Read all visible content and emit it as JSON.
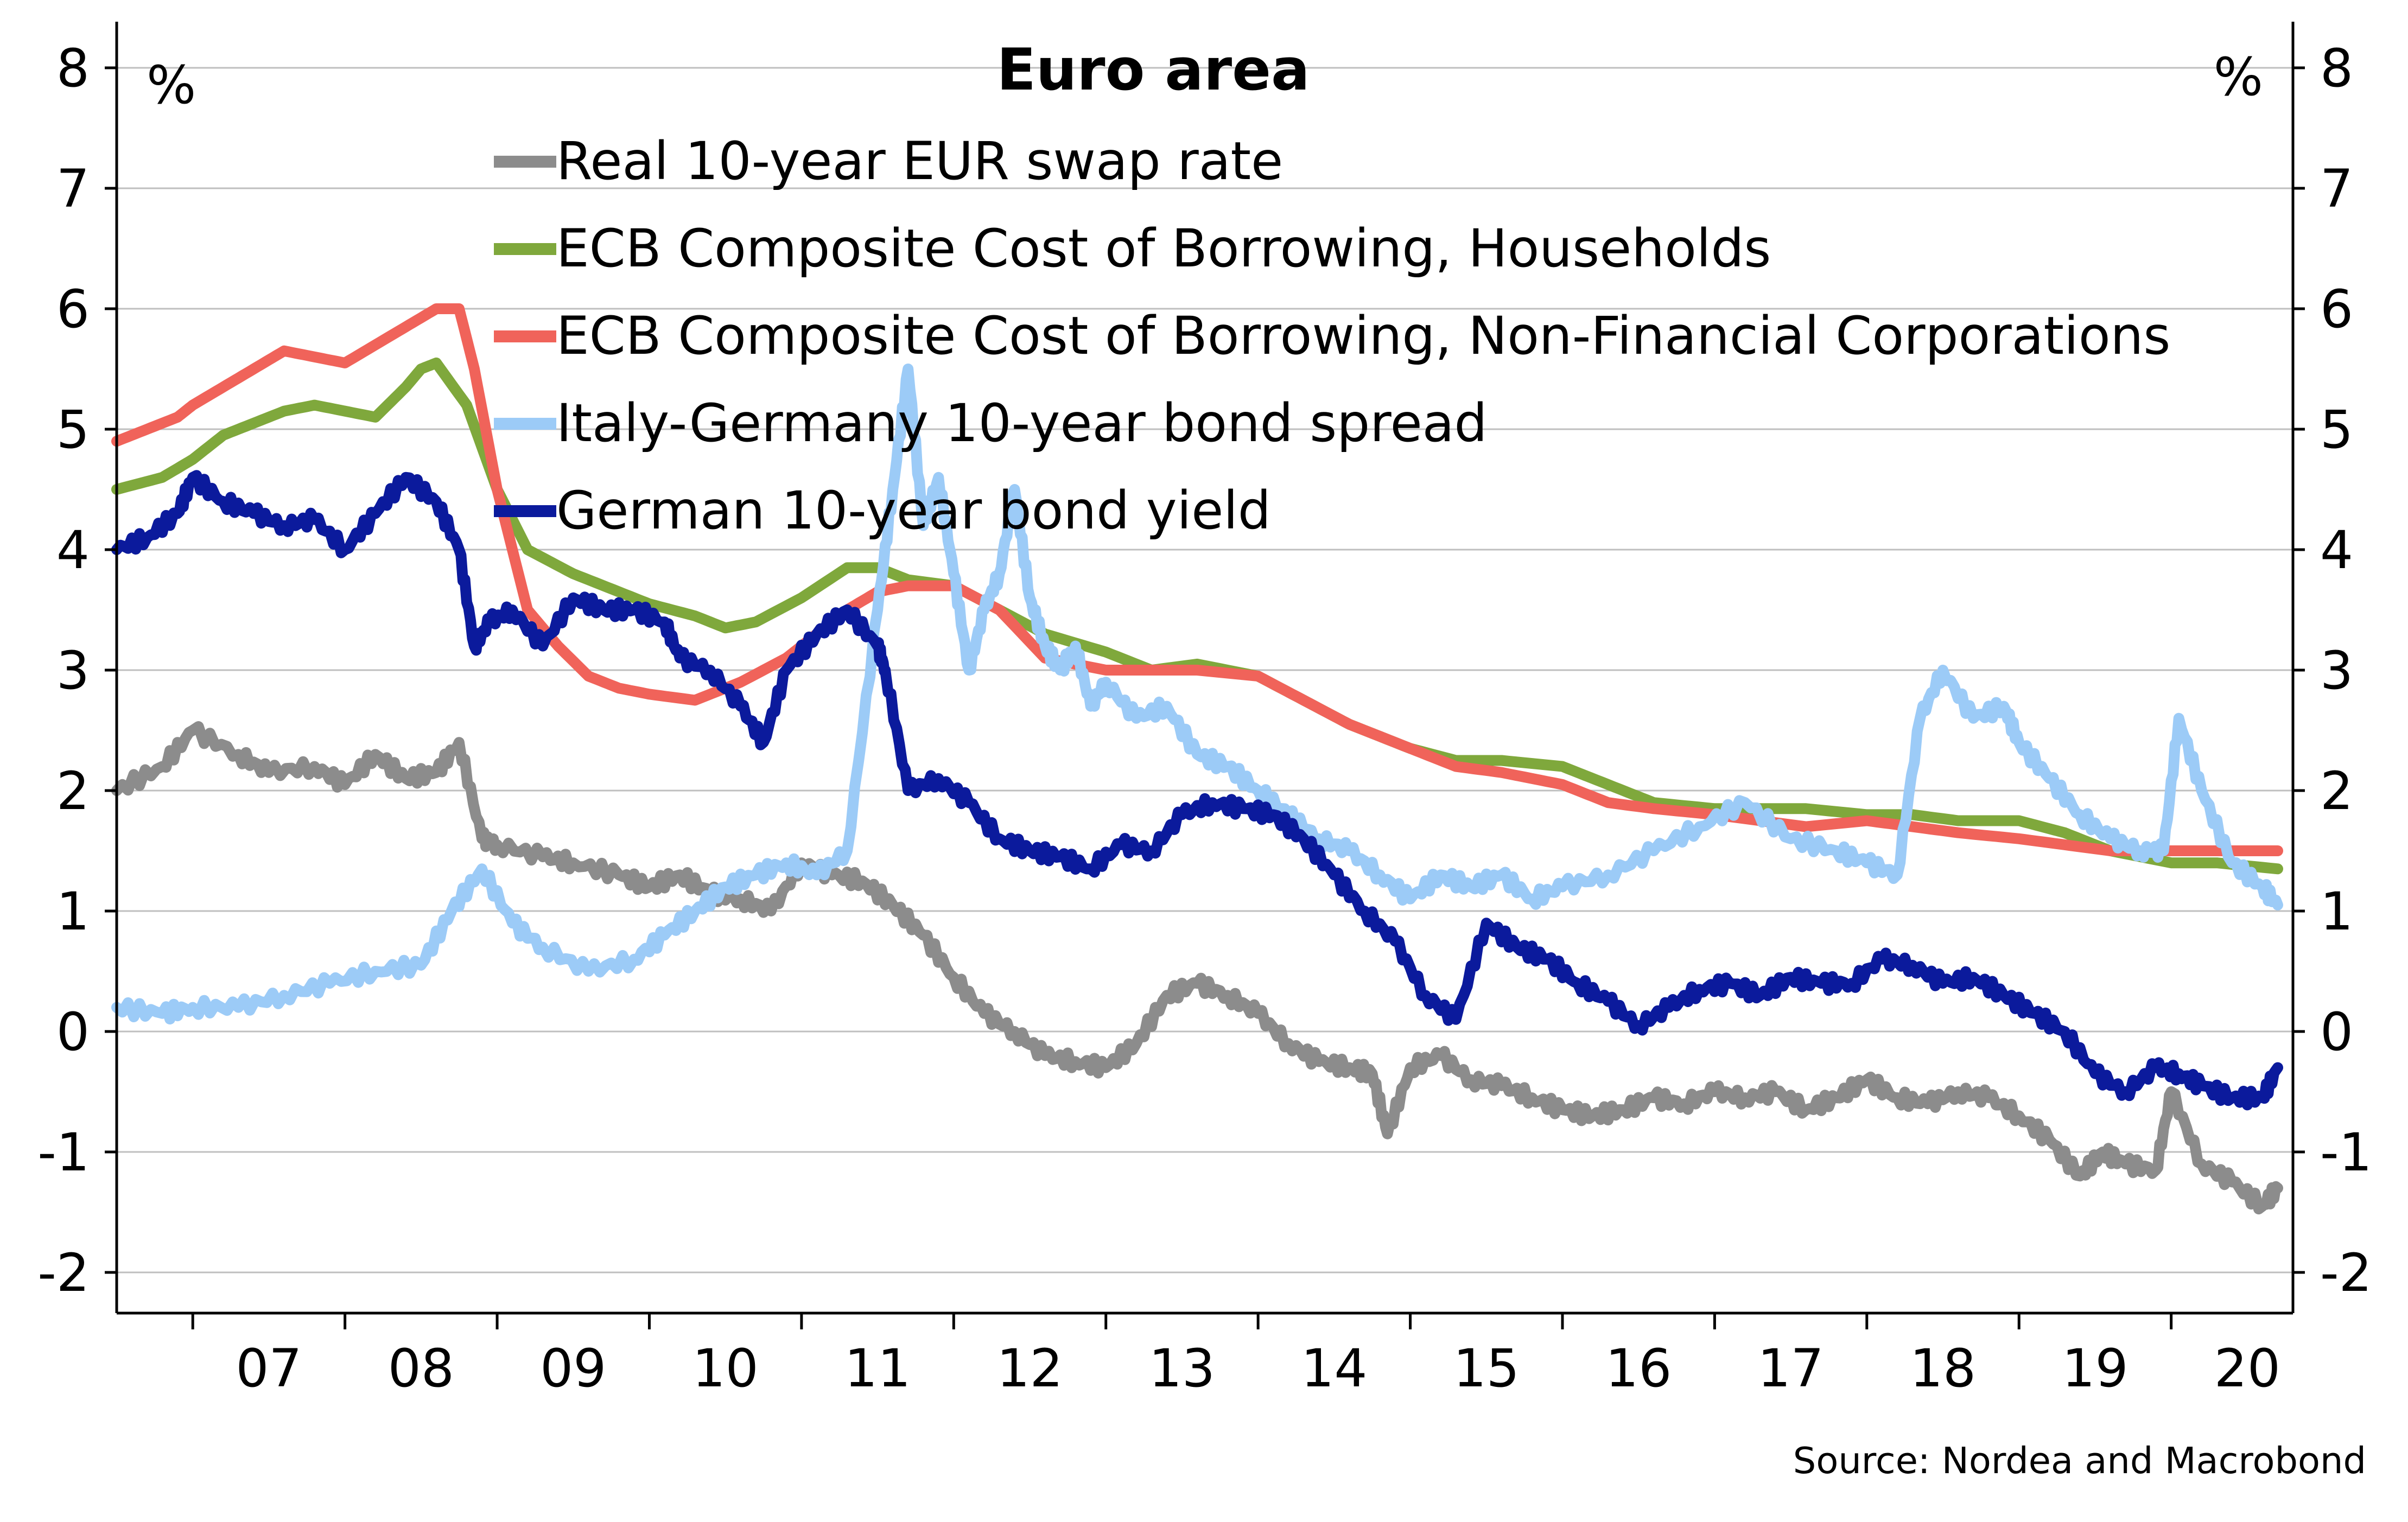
{
  "chart_data": {
    "type": "line",
    "title": "Euro area",
    "unit_left": "%",
    "unit_right": "%",
    "source": "Source: Nordea and Macrobond",
    "ylim": [
      -2,
      8
    ],
    "yticks": [
      "8",
      "7",
      "6",
      "5",
      "4",
      "3",
      "2",
      "1",
      "0",
      "-1",
      "-2"
    ],
    "xlim": [
      2006.5,
      2020.8
    ],
    "xticks": [
      "07",
      "08",
      "09",
      "10",
      "11",
      "12",
      "13",
      "14",
      "15",
      "16",
      "17",
      "18",
      "19",
      "20"
    ],
    "grid": true,
    "legend_position": "top-center",
    "series": [
      {
        "name": "Real 10-year EUR swap rate",
        "color": "#8c8c8c",
        "x": [
          2006.5,
          2006.8,
          2007.0,
          2007.3,
          2007.5,
          2007.8,
          2008.0,
          2008.2,
          2008.4,
          2008.6,
          2008.75,
          2008.9,
          2009.0,
          2009.3,
          2009.5,
          2009.8,
          2010.0,
          2010.2,
          2010.4,
          2010.6,
          2010.8,
          2011.0,
          2011.2,
          2011.4,
          2011.6,
          2011.8,
          2012.0,
          2012.2,
          2012.4,
          2012.6,
          2012.8,
          2013.0,
          2013.2,
          2013.4,
          2013.6,
          2013.8,
          2014.0,
          2014.2,
          2014.4,
          2014.6,
          2014.75,
          2014.85,
          2015.0,
          2015.2,
          2015.4,
          2015.6,
          2015.8,
          2016.0,
          2016.2,
          2016.4,
          2016.6,
          2016.8,
          2017.0,
          2017.2,
          2017.4,
          2017.6,
          2017.8,
          2018.0,
          2018.2,
          2018.4,
          2018.6,
          2018.8,
          2019.0,
          2019.2,
          2019.4,
          2019.55,
          2019.7,
          2019.9,
          2020.0,
          2020.2,
          2020.4,
          2020.6,
          2020.7
        ],
        "y": [
          2.0,
          2.2,
          2.5,
          2.3,
          2.15,
          2.2,
          2.05,
          2.3,
          2.1,
          2.15,
          2.4,
          1.6,
          1.55,
          1.45,
          1.4,
          1.3,
          1.2,
          1.3,
          1.15,
          1.1,
          1.0,
          1.4,
          1.3,
          1.25,
          1.05,
          0.8,
          0.45,
          0.15,
          0.0,
          -0.2,
          -0.25,
          -0.3,
          -0.1,
          0.3,
          0.4,
          0.3,
          0.15,
          -0.1,
          -0.25,
          -0.3,
          -0.35,
          -0.85,
          -0.3,
          -0.2,
          -0.4,
          -0.45,
          -0.55,
          -0.65,
          -0.7,
          -0.65,
          -0.55,
          -0.6,
          -0.5,
          -0.55,
          -0.5,
          -0.65,
          -0.55,
          -0.4,
          -0.55,
          -0.6,
          -0.5,
          -0.55,
          -0.7,
          -0.9,
          -1.2,
          -1.0,
          -1.1,
          -1.15,
          -0.5,
          -1.1,
          -1.25,
          -1.45,
          -1.3
        ]
      },
      {
        "name": "ECB Composite Cost of Borrowing, Households",
        "color": "#7fa83c",
        "x": [
          2006.5,
          2006.8,
          2007.0,
          2007.2,
          2007.4,
          2007.6,
          2007.8,
          2008.0,
          2008.2,
          2008.4,
          2008.5,
          2008.6,
          2008.8,
          2009.0,
          2009.2,
          2009.5,
          2009.8,
          2010.0,
          2010.3,
          2010.5,
          2010.7,
          2011.0,
          2011.3,
          2011.5,
          2011.7,
          2012.0,
          2012.3,
          2012.6,
          2013.0,
          2013.3,
          2013.6,
          2014.0,
          2014.3,
          2014.6,
          2015.0,
          2015.3,
          2015.6,
          2016.0,
          2016.3,
          2016.6,
          2017.0,
          2017.3,
          2017.6,
          2018.0,
          2018.3,
          2018.6,
          2019.0,
          2019.3,
          2019.6,
          2020.0,
          2020.3,
          2020.7
        ],
        "y": [
          4.5,
          4.6,
          4.75,
          4.95,
          5.05,
          5.15,
          5.2,
          5.15,
          5.1,
          5.35,
          5.5,
          5.55,
          5.2,
          4.5,
          4.0,
          3.8,
          3.65,
          3.55,
          3.45,
          3.35,
          3.4,
          3.6,
          3.85,
          3.85,
          3.75,
          3.7,
          3.5,
          3.3,
          3.15,
          3.0,
          3.05,
          2.95,
          2.75,
          2.55,
          2.35,
          2.25,
          2.25,
          2.2,
          2.05,
          1.9,
          1.85,
          1.85,
          1.85,
          1.8,
          1.8,
          1.75,
          1.75,
          1.65,
          1.5,
          1.4,
          1.4,
          1.35
        ]
      },
      {
        "name": "ECB Composite Cost of Borrowing, Non-Financial Corporations",
        "color": "#f0635a",
        "x": [
          2006.5,
          2006.7,
          2006.9,
          2007.0,
          2007.2,
          2007.4,
          2007.6,
          2007.8,
          2008.0,
          2008.2,
          2008.4,
          2008.6,
          2008.75,
          2008.85,
          2009.0,
          2009.2,
          2009.4,
          2009.6,
          2009.8,
          2010.0,
          2010.3,
          2010.6,
          2010.9,
          2011.1,
          2011.3,
          2011.5,
          2011.7,
          2012.0,
          2012.3,
          2012.6,
          2013.0,
          2013.3,
          2013.6,
          2014.0,
          2014.3,
          2014.6,
          2015.0,
          2015.3,
          2015.6,
          2016.0,
          2016.3,
          2016.6,
          2017.0,
          2017.3,
          2017.6,
          2018.0,
          2018.3,
          2018.6,
          2019.0,
          2019.3,
          2019.6,
          2020.0,
          2020.3,
          2020.7
        ],
        "y": [
          4.9,
          5.0,
          5.1,
          5.2,
          5.35,
          5.5,
          5.65,
          5.6,
          5.55,
          5.7,
          5.85,
          6.0,
          6.0,
          5.5,
          4.5,
          3.5,
          3.2,
          2.95,
          2.85,
          2.8,
          2.75,
          2.9,
          3.1,
          3.3,
          3.5,
          3.65,
          3.7,
          3.7,
          3.5,
          3.1,
          3.0,
          3.0,
          3.0,
          2.95,
          2.75,
          2.55,
          2.35,
          2.2,
          2.15,
          2.05,
          1.9,
          1.85,
          1.8,
          1.75,
          1.7,
          1.75,
          1.7,
          1.65,
          1.6,
          1.55,
          1.5,
          1.5,
          1.5,
          1.5
        ]
      },
      {
        "name": "Italy-Germany 10-year bond spread",
        "color": "#9ccbf7",
        "x": [
          2006.5,
          2006.8,
          2007.0,
          2007.3,
          2007.6,
          2007.9,
          2008.2,
          2008.5,
          2008.7,
          2008.9,
          2009.1,
          2009.3,
          2009.6,
          2009.9,
          2010.1,
          2010.3,
          2010.5,
          2010.7,
          2010.9,
          2011.1,
          2011.3,
          2011.5,
          2011.6,
          2011.7,
          2011.8,
          2011.9,
          2012.0,
          2012.1,
          2012.2,
          2012.3,
          2012.4,
          2012.5,
          2012.6,
          2012.7,
          2012.8,
          2012.9,
          2013.0,
          2013.2,
          2013.4,
          2013.6,
          2013.8,
          2014.0,
          2014.2,
          2014.4,
          2014.6,
          2014.8,
          2015.0,
          2015.2,
          2015.4,
          2015.6,
          2015.8,
          2016.0,
          2016.3,
          2016.6,
          2016.9,
          2017.2,
          2017.5,
          2017.8,
          2018.0,
          2018.2,
          2018.35,
          2018.5,
          2018.7,
          2018.9,
          2019.0,
          2019.2,
          2019.4,
          2019.6,
          2019.8,
          2019.95,
          2020.05,
          2020.2,
          2020.4,
          2020.6,
          2020.7
        ],
        "y": [
          0.2,
          0.15,
          0.2,
          0.2,
          0.3,
          0.4,
          0.5,
          0.55,
          1.0,
          1.35,
          0.9,
          0.7,
          0.5,
          0.6,
          0.8,
          1.0,
          1.2,
          1.3,
          1.4,
          1.3,
          1.5,
          3.5,
          4.5,
          5.5,
          4.2,
          4.6,
          3.8,
          3.0,
          3.5,
          3.8,
          4.5,
          3.6,
          3.2,
          3.0,
          3.2,
          2.7,
          2.9,
          2.6,
          2.7,
          2.3,
          2.2,
          2.0,
          1.8,
          1.6,
          1.5,
          1.3,
          1.1,
          1.3,
          1.2,
          1.3,
          1.1,
          1.2,
          1.3,
          1.5,
          1.7,
          1.9,
          1.6,
          1.5,
          1.4,
          1.3,
          2.6,
          3.0,
          2.6,
          2.7,
          2.4,
          2.1,
          1.8,
          1.6,
          1.5,
          1.5,
          2.6,
          2.0,
          1.4,
          1.2,
          1.05
        ]
      },
      {
        "name": "German 10-year bond yield",
        "color": "#0b1a9c",
        "x": [
          2006.5,
          2006.7,
          2006.9,
          2007.0,
          2007.2,
          2007.4,
          2007.6,
          2007.8,
          2008.0,
          2008.2,
          2008.4,
          2008.6,
          2008.75,
          2008.85,
          2008.95,
          2009.1,
          2009.3,
          2009.5,
          2009.7,
          2009.9,
          2010.1,
          2010.2,
          2010.4,
          2010.6,
          2010.75,
          2010.9,
          2011.1,
          2011.3,
          2011.5,
          2011.55,
          2011.7,
          2011.9,
          2012.1,
          2012.3,
          2012.5,
          2012.7,
          2012.9,
          2013.1,
          2013.3,
          2013.5,
          2013.7,
          2013.9,
          2014.1,
          2014.3,
          2014.5,
          2014.7,
          2014.9,
          2015.1,
          2015.3,
          2015.5,
          2015.7,
          2015.9,
          2016.1,
          2016.3,
          2016.5,
          2016.7,
          2016.9,
          2017.1,
          2017.3,
          2017.5,
          2017.7,
          2017.9,
          2018.1,
          2018.3,
          2018.5,
          2018.7,
          2018.9,
          2019.1,
          2019.3,
          2019.5,
          2019.7,
          2019.9,
          2020.05,
          2020.2,
          2020.4,
          2020.6,
          2020.7
        ],
        "y": [
          4.0,
          4.1,
          4.3,
          4.6,
          4.4,
          4.3,
          4.2,
          4.25,
          4.0,
          4.3,
          4.6,
          4.4,
          4.0,
          3.2,
          3.4,
          3.5,
          3.2,
          3.6,
          3.5,
          3.5,
          3.4,
          3.1,
          3.0,
          2.7,
          2.4,
          3.0,
          3.3,
          3.5,
          3.2,
          3.0,
          2.0,
          2.1,
          1.9,
          1.6,
          1.5,
          1.45,
          1.35,
          1.55,
          1.5,
          1.8,
          1.9,
          1.85,
          1.8,
          1.6,
          1.3,
          1.0,
          0.75,
          0.3,
          0.1,
          0.9,
          0.7,
          0.6,
          0.4,
          0.25,
          0.05,
          0.2,
          0.35,
          0.4,
          0.3,
          0.45,
          0.4,
          0.4,
          0.6,
          0.55,
          0.4,
          0.45,
          0.3,
          0.15,
          0.0,
          -0.35,
          -0.5,
          -0.3,
          -0.35,
          -0.45,
          -0.55,
          -0.55,
          -0.3
        ]
      }
    ]
  }
}
